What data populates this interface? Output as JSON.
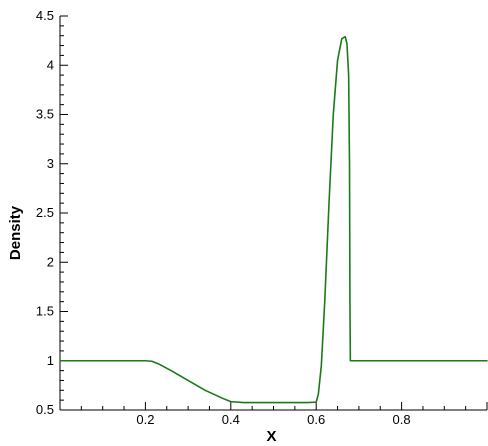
{
  "chart_data": {
    "type": "line",
    "title": "",
    "xlabel": "X",
    "ylabel": "Density",
    "xlim": [
      0,
      1
    ],
    "ylim": [
      0.5,
      4.5
    ],
    "x_ticks": [
      0.2,
      0.4,
      0.6,
      0.8
    ],
    "x_tick_labels": [
      "0.2",
      "0.4",
      "0.6",
      "0.8"
    ],
    "y_ticks": [
      0.5,
      1,
      1.5,
      2,
      2.5,
      3,
      3.5,
      4,
      4.5
    ],
    "y_tick_labels": [
      "0.5",
      "1",
      "1.5",
      "2",
      "2.5",
      "3",
      "3.5",
      "4",
      "4.5"
    ],
    "grid": false,
    "line_color": "#1a7a1a",
    "series": [
      {
        "x": [
          0,
          0.2,
          0.215,
          0.23,
          0.26,
          0.3,
          0.34,
          0.38,
          0.4,
          0.43,
          0.5,
          0.58,
          0.6,
          0.605,
          0.612,
          0.62,
          0.63,
          0.64,
          0.65,
          0.66,
          0.668,
          0.672,
          0.676,
          0.678,
          0.679,
          0.68,
          0.7,
          0.8,
          0.9,
          1.0
        ],
        "y": [
          1.0,
          1.0,
          0.995,
          0.97,
          0.9,
          0.8,
          0.7,
          0.62,
          0.585,
          0.575,
          0.575,
          0.575,
          0.58,
          0.66,
          0.95,
          1.6,
          2.6,
          3.5,
          4.05,
          4.27,
          4.29,
          4.22,
          3.9,
          3.0,
          1.6,
          1.0,
          1.0,
          1.0,
          1.0,
          1.0
        ]
      }
    ]
  }
}
